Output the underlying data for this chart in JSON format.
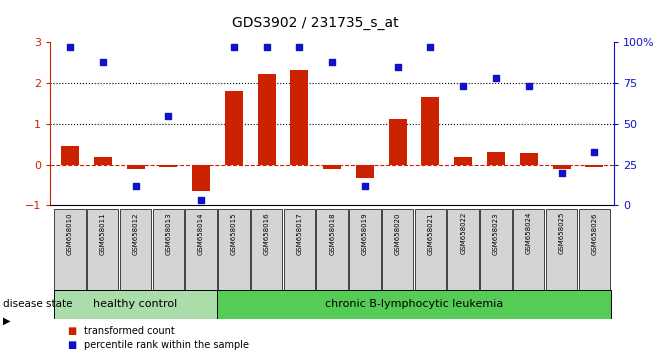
{
  "title": "GDS3902 / 231735_s_at",
  "samples": [
    "GSM658010",
    "GSM658011",
    "GSM658012",
    "GSM658013",
    "GSM658014",
    "GSM658015",
    "GSM658016",
    "GSM658017",
    "GSM658018",
    "GSM658019",
    "GSM658020",
    "GSM658021",
    "GSM658022",
    "GSM658023",
    "GSM658024",
    "GSM658025",
    "GSM658026"
  ],
  "bar_values": [
    0.45,
    0.18,
    -0.1,
    -0.05,
    -0.65,
    1.82,
    2.22,
    2.32,
    -0.12,
    -0.32,
    1.12,
    1.65,
    0.18,
    0.3,
    0.28,
    -0.12,
    -0.06
  ],
  "dot_values": [
    97,
    88,
    12,
    55,
    3,
    97,
    97,
    97,
    88,
    12,
    85,
    97,
    73,
    78,
    73,
    20,
    33
  ],
  "healthy_count": 5,
  "leukemia_count": 12,
  "bar_color": "#cc2200",
  "dot_color": "#1111cc",
  "healthy_color": "#aaddaa",
  "leukemia_color": "#55cc55",
  "background_color": "#ffffff",
  "ylim_left": [
    -1.0,
    3.0
  ],
  "ylim_right": [
    0,
    100
  ],
  "yticks_left": [
    -1,
    0,
    1,
    2,
    3
  ],
  "yticks_right": [
    0,
    25,
    50,
    75,
    100
  ],
  "ytick_labels_right": [
    "0",
    "25",
    "50",
    "75",
    "100%"
  ],
  "hline_y": 0.0,
  "dotted_lines": [
    1.0,
    2.0
  ],
  "legend_bar_label": "transformed count",
  "legend_dot_label": "percentile rank within the sample",
  "disease_label": "disease state",
  "healthy_label": "healthy control",
  "leukemia_label": "chronic B-lymphocytic leukemia"
}
